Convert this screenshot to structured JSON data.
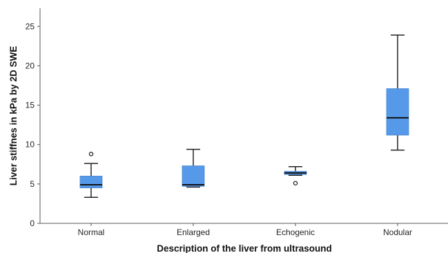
{
  "chart_data": {
    "type": "boxplot",
    "title": "",
    "xlabel": "Description of the liver from ultrasound",
    "ylabel": "Liver stiffnes in kPa by 2D SWE",
    "ylim": [
      0,
      27.3
    ],
    "yticks": [
      0,
      5,
      10,
      15,
      20,
      25
    ],
    "grid": false,
    "legend": "none",
    "box_color": "#5599e8",
    "median_color": "#111111",
    "whisker_color": "#222222",
    "categories": [
      "Normal",
      "Enlarged",
      "Echogenic",
      "Nodular"
    ],
    "boxes": [
      {
        "category": "Normal",
        "whisker_low": 3.3,
        "q1": 4.5,
        "median": 4.9,
        "q3": 6.0,
        "whisker_high": 7.6,
        "outliers": [
          8.8
        ]
      },
      {
        "category": "Enlarged",
        "whisker_low": 4.6,
        "q1": 4.7,
        "median": 4.9,
        "q3": 7.3,
        "whisker_high": 9.4,
        "outliers": []
      },
      {
        "category": "Echogenic",
        "whisker_low": 6.1,
        "q1": 6.2,
        "median": 6.4,
        "q3": 6.6,
        "whisker_high": 7.2,
        "outliers": [
          5.1
        ]
      },
      {
        "category": "Nodular",
        "whisker_low": 9.3,
        "q1": 11.2,
        "median": 13.4,
        "q3": 17.1,
        "whisker_high": 23.9,
        "outliers": []
      }
    ]
  }
}
